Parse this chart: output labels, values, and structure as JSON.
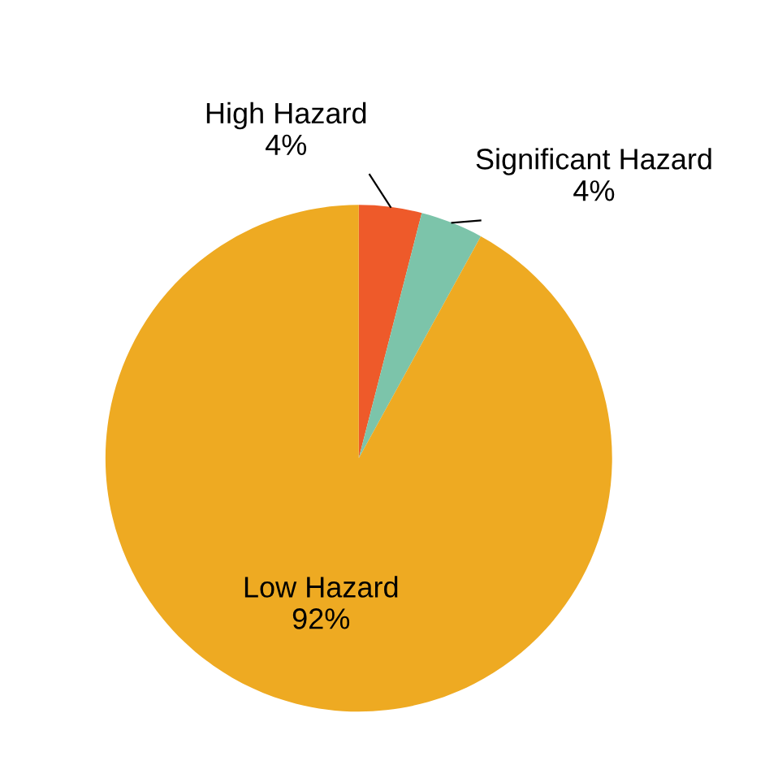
{
  "chart_data": {
    "type": "pie",
    "categories": [
      "High Hazard",
      "Significant Hazard",
      "Low Hazard"
    ],
    "values": [
      4,
      4,
      92
    ],
    "colors": [
      "#ee5a2a",
      "#7cc4aa",
      "#eeaa22"
    ],
    "value_labels": [
      "4%",
      "4%",
      "92%"
    ]
  }
}
